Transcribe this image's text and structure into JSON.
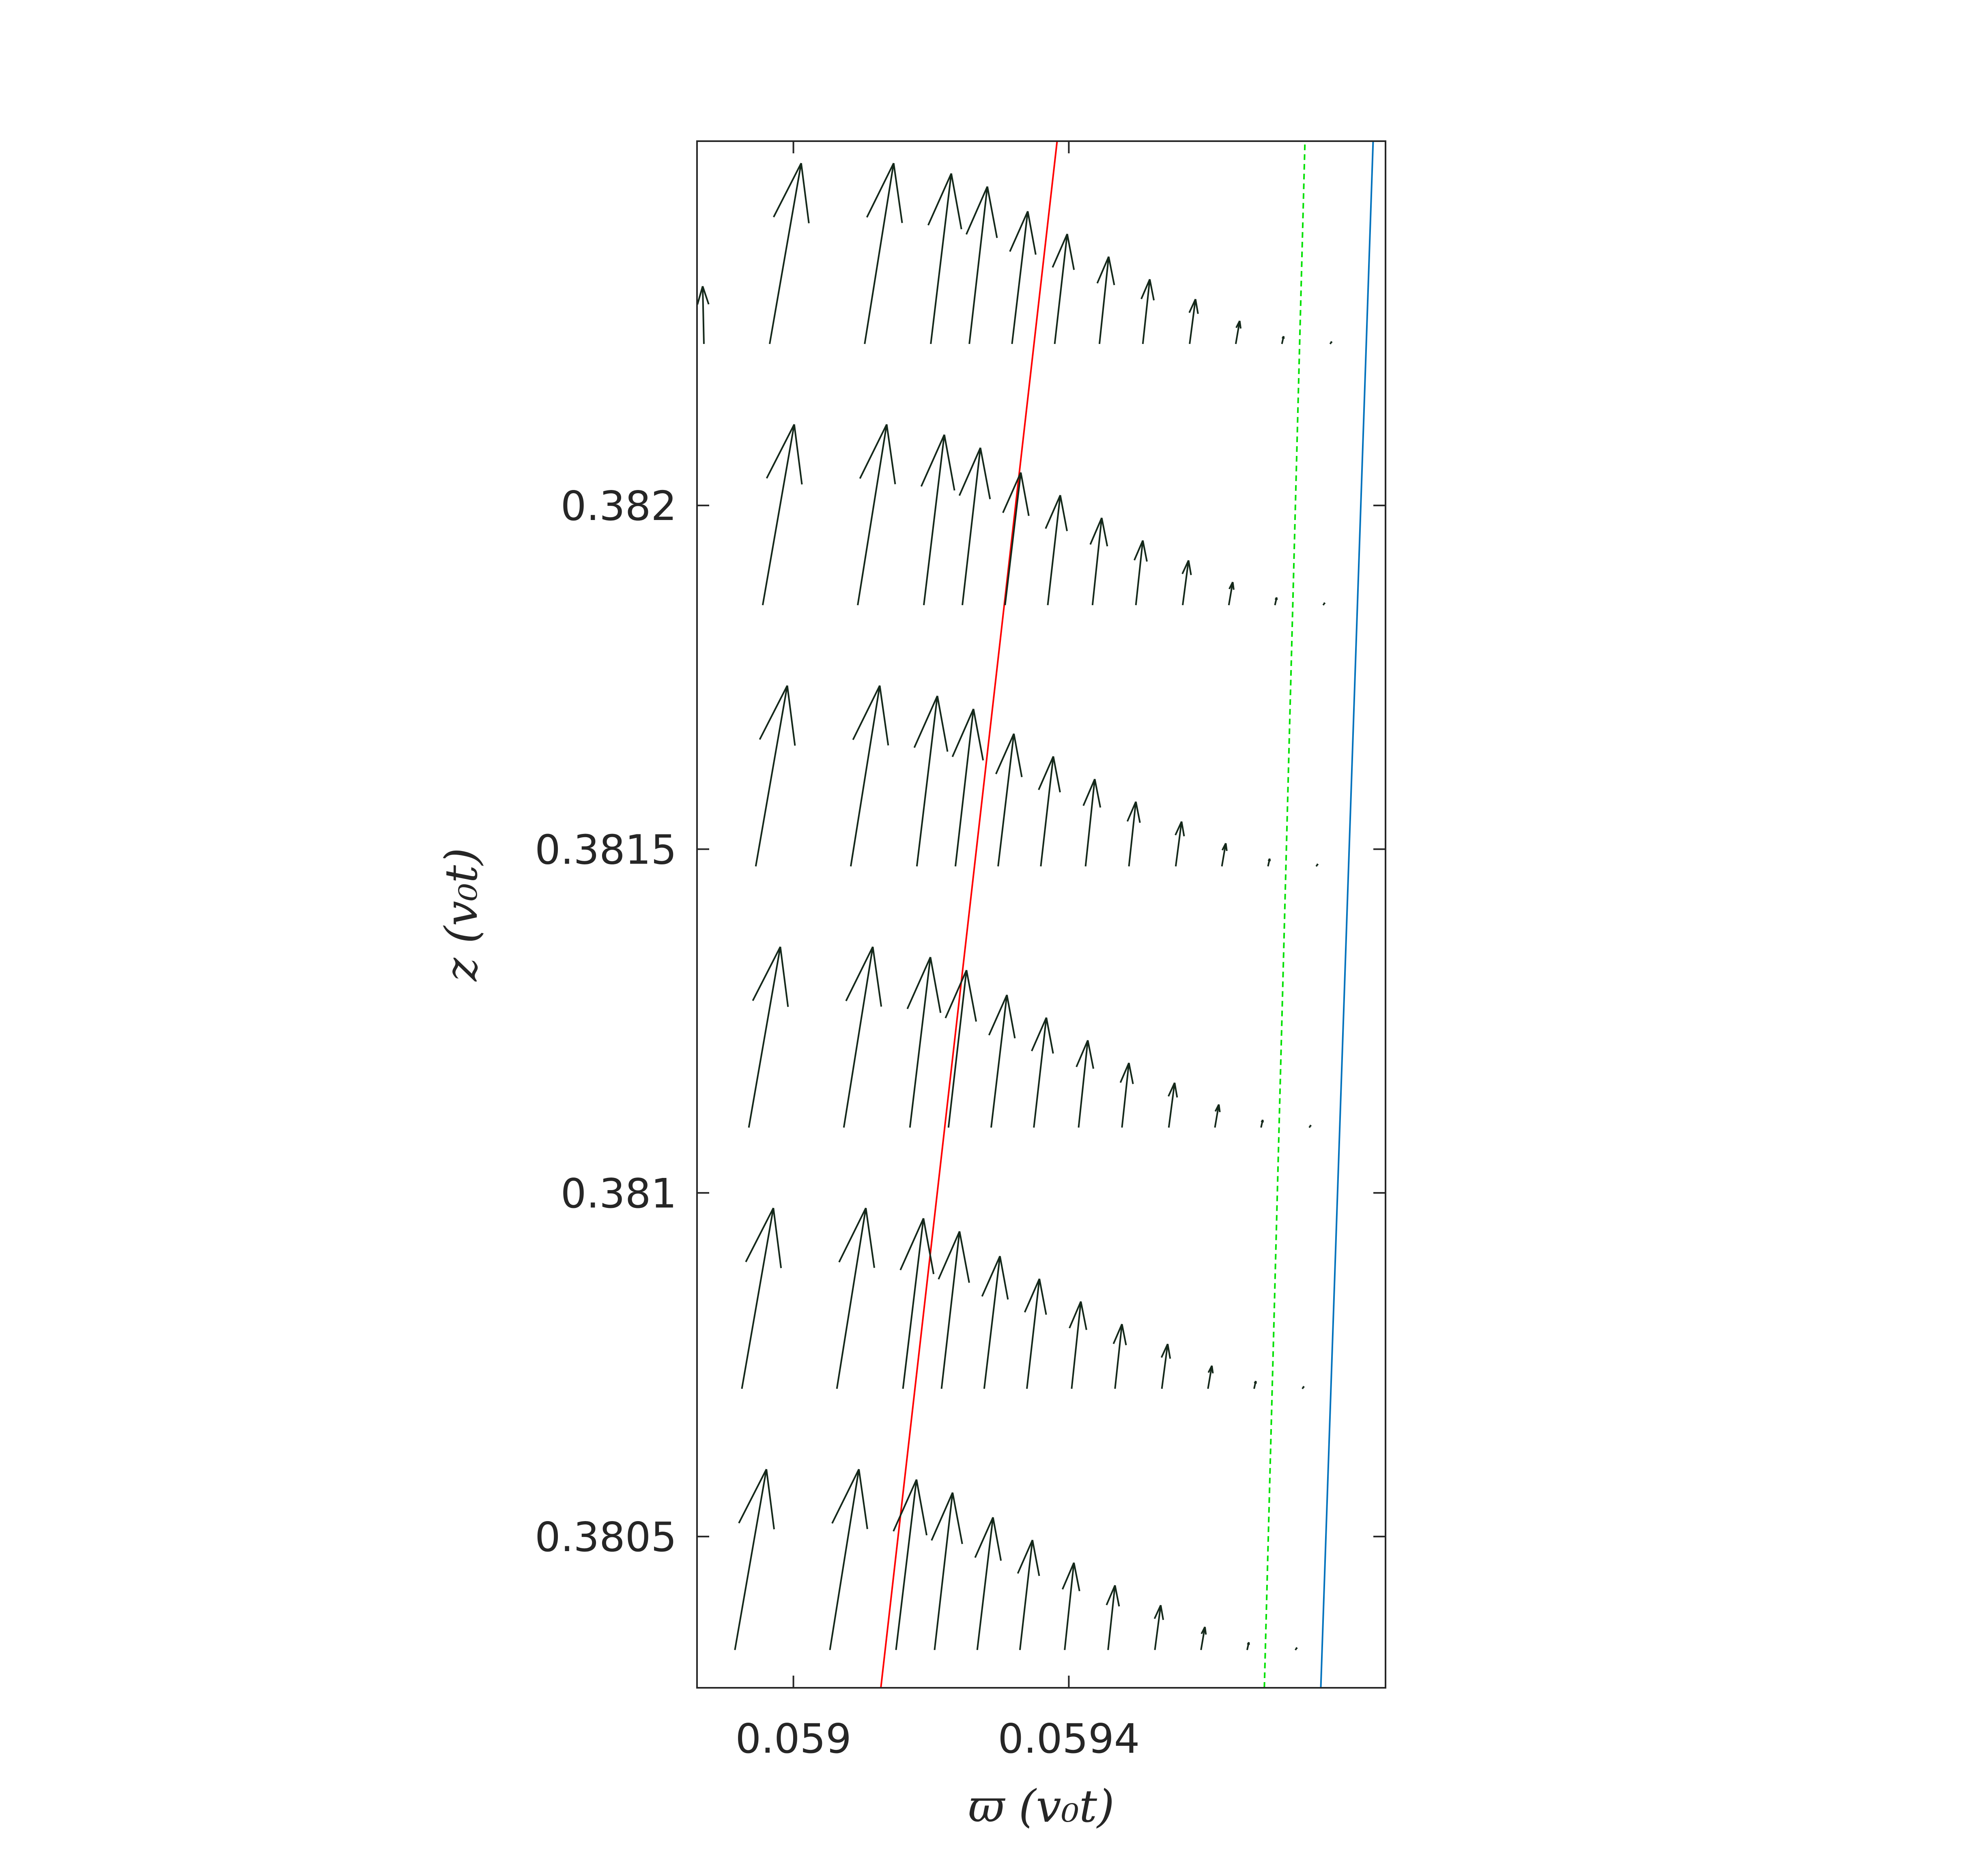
{
  "chart_data": {
    "type": "quiver",
    "xlabel": "ϖ (v₀t)",
    "ylabel": "z (v₀t)",
    "xlim": [
      0.05886,
      0.05986
    ],
    "ylim": [
      0.38028,
      0.38253
    ],
    "x_ticks": [
      0.059,
      0.0594
    ],
    "x_tick_labels": [
      "0.059",
      "0.0594"
    ],
    "y_ticks": [
      0.3805,
      0.381,
      0.3815,
      0.382
    ],
    "y_tick_labels": [
      "0.3805",
      "0.381",
      "0.3815",
      "0.382"
    ],
    "box": true,
    "grid": false,
    "arrow_color": "#14281a",
    "lines": [
      {
        "name": "",
        "style": "solid",
        "color": "#ff0000",
        "points": [
          [
            0.059127,
            0.38028
          ],
          [
            0.059383,
            0.38253
          ]
        ]
      },
      {
        "name": "",
        "style": "dashed",
        "color": "#00e000",
        "points": [
          [
            0.059684,
            0.38028
          ],
          [
            0.059743,
            0.38253
          ]
        ]
      },
      {
        "name": "",
        "style": "solid",
        "color": "#0072bd",
        "points": [
          [
            0.059766,
            0.38028
          ],
          [
            0.059842,
            0.38253
          ]
        ]
      }
    ],
    "quiver": {
      "rows_z": [
        0.380335,
        0.380715,
        0.381095,
        0.381475,
        0.381855,
        0.382235
      ],
      "row_shift_dx": 1.01e-05,
      "columns_bottom_row": [
        {
          "x": 0.058915,
          "u": 4.58e-05,
          "v": 0.000263
        },
        {
          "x": 0.059053,
          "u": 4.21e-05,
          "v": 0.000263
        },
        {
          "x": 0.059149,
          "u": 2.98e-05,
          "v": 0.000248
        },
        {
          "x": 0.059205,
          "u": 2.62e-05,
          "v": 0.000229
        },
        {
          "x": 0.059267,
          "u": 2.29e-05,
          "v": 0.000193
        },
        {
          "x": 0.059329,
          "u": 1.82e-05,
          "v": 0.00016
        },
        {
          "x": 0.059394,
          "u": 1.34e-05,
          "v": 0.000127
        },
        {
          "x": 0.059457,
          "u": 1.01e-05,
          "v": 9.41e-05
        },
        {
          "x": 0.059525,
          "u": 8.5e-06,
          "v": 6.52e-05
        },
        {
          "x": 0.059592,
          "u": 5.7e-06,
          "v": 3.36e-05
        },
        {
          "x": 0.059659,
          "u": 2.5e-06,
          "v": 1.12e-05
        },
        {
          "x": 0.059729,
          "u": 2.4e-06,
          "v": 3.4e-06
        }
      ],
      "left_edge_partial": {
        "x": 0.05887,
        "z": 0.382235,
        "u": -1.8e-06,
        "v": 8.4e-05
      }
    }
  }
}
